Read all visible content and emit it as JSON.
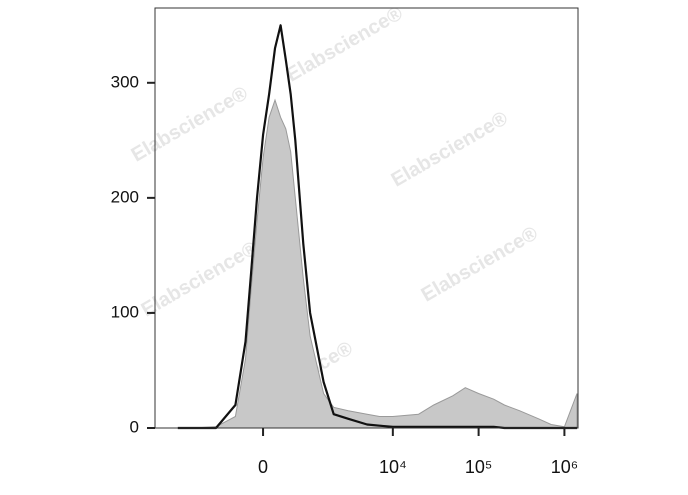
{
  "chart_data": {
    "type": "histogram",
    "x": [
      -3000,
      -2000,
      -1000,
      -500,
      -300,
      -200,
      -100,
      0,
      100,
      200,
      300,
      400,
      500,
      600,
      800,
      1000,
      1500,
      2000,
      3000,
      5000,
      7000,
      10000,
      20000,
      30000,
      50000,
      70000,
      100000,
      150000,
      200000,
      300000,
      500000,
      700000,
      1000000,
      1400000
    ],
    "series": [
      {
        "color": "#c8c8c8",
        "values": [
          0,
          0,
          1,
          10,
          60,
          120,
          180,
          235,
          270,
          285,
          270,
          260,
          240,
          200,
          130,
          80,
          30,
          18,
          15,
          12,
          10,
          10,
          12,
          20,
          28,
          35,
          30,
          25,
          20,
          15,
          8,
          3,
          1,
          30
        ]
      },
      {
        "color": "#111111",
        "values": [
          0,
          0,
          0,
          20,
          75,
          135,
          200,
          255,
          290,
          330,
          350,
          320,
          290,
          250,
          160,
          100,
          40,
          12,
          8,
          3,
          2,
          1,
          1,
          1,
          1,
          1,
          1,
          1,
          0,
          0,
          0,
          0,
          0,
          0
        ]
      }
    ],
    "xscale": "biexponential",
    "xlim": [
      -5570,
      1440000
    ],
    "xticks": [
      0,
      {
        "value": 10000,
        "label": "10⁴"
      },
      {
        "value": 100000,
        "label": "10⁵"
      },
      {
        "value": 1000000,
        "label": "10⁶"
      }
    ],
    "ylim": [
      0,
      365
    ],
    "yticks": [
      0,
      100,
      200,
      300
    ],
    "watermark": "Elabscience®"
  }
}
